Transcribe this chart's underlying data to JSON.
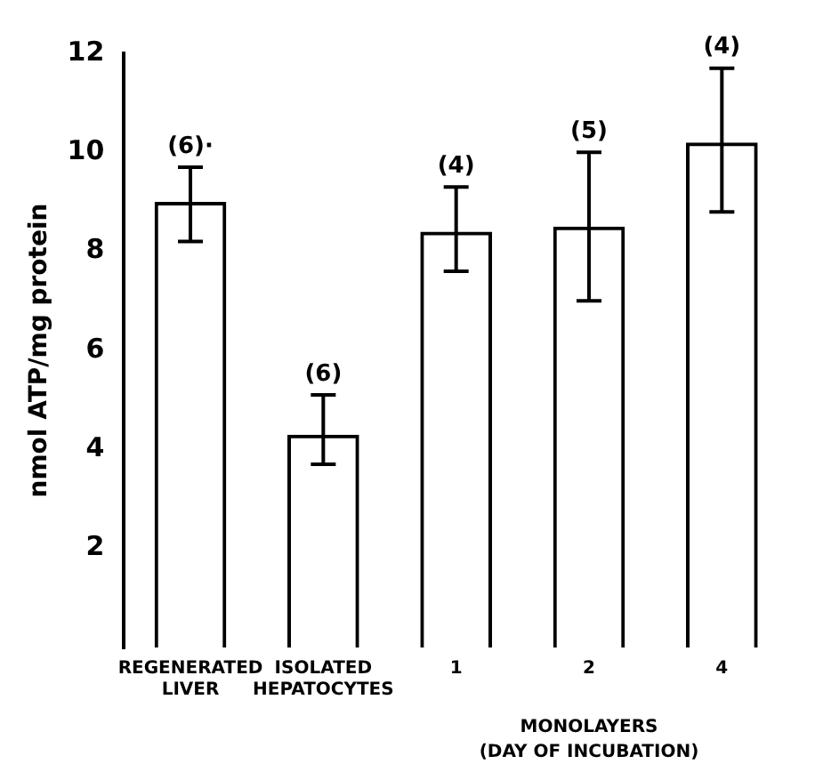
{
  "chart_data": {
    "type": "bar",
    "ylabel": "nmol ATP/mg protein",
    "categories": [
      "REGENERATED LIVER",
      "ISOLATED HEPATOCYTES",
      "1",
      "2",
      "4"
    ],
    "values": [
      9.0,
      4.3,
      8.4,
      8.5,
      10.2
    ],
    "errors": [
      [
        8.2,
        9.7
      ],
      [
        3.7,
        5.1
      ],
      [
        7.6,
        9.3
      ],
      [
        7.0,
        10.0
      ],
      [
        8.8,
        11.7
      ]
    ],
    "color": "#000000",
    "ylim": [
      0,
      12
    ],
    "yticks": [
      2,
      4,
      6,
      8,
      10,
      12
    ],
    "annotations": [
      {
        "text": "(6)·",
        "x": "REGENERATED LIVER",
        "y": 9.7
      },
      {
        "text": "(6)",
        "x": "ISOLATED HEPATOCYTES",
        "y": 5.1
      },
      {
        "text": "(4)",
        "x": "1",
        "y": 9.3
      },
      {
        "text": "(5)",
        "x": "2",
        "y": 10.0
      },
      {
        "text": "(4)",
        "x": "4",
        "y": 11.7
      },
      "MONOLAYERS",
      "(DAY OF INCUBATION)"
    ],
    "grid": false,
    "legend": false
  }
}
